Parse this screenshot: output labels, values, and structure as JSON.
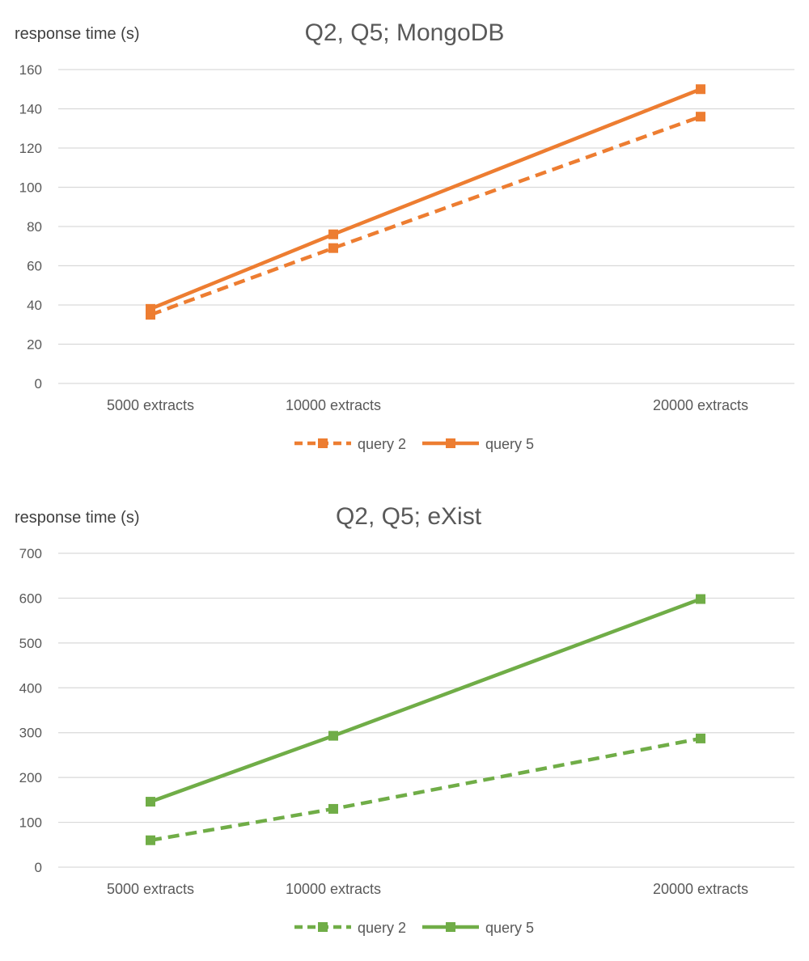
{
  "chart_data": [
    {
      "type": "line",
      "title": "Q2, Q5;  MongoDB",
      "ylabel": "response time (s)",
      "xlabel": "",
      "categories": [
        "5000 extracts",
        "10000 extracts",
        "20000 extracts"
      ],
      "x": [
        5000,
        10000,
        20000
      ],
      "ylim": [
        0,
        160
      ],
      "yticks": [
        0,
        20,
        40,
        60,
        80,
        100,
        120,
        140,
        160
      ],
      "grid": true,
      "legend_position": "bottom",
      "color": "#ed7d31",
      "series": [
        {
          "name": "query 2",
          "style": "dashed",
          "values": [
            35,
            69,
            136
          ]
        },
        {
          "name": "query 5",
          "style": "solid",
          "values": [
            38,
            76,
            150
          ]
        }
      ]
    },
    {
      "type": "line",
      "title": "Q2, Q5;  eXist",
      "ylabel": "response time (s)",
      "xlabel": "",
      "categories": [
        "5000 extracts",
        "10000 extracts",
        "20000 extracts"
      ],
      "x": [
        5000,
        10000,
        20000
      ],
      "ylim": [
        0,
        700
      ],
      "yticks": [
        0,
        100,
        200,
        300,
        400,
        500,
        600,
        700
      ],
      "grid": true,
      "legend_position": "bottom",
      "color": "#70ad47",
      "series": [
        {
          "name": "query 2",
          "style": "dashed",
          "values": [
            60,
            130,
            287
          ]
        },
        {
          "name": "query 5",
          "style": "solid",
          "values": [
            146,
            293,
            598
          ]
        }
      ]
    }
  ]
}
